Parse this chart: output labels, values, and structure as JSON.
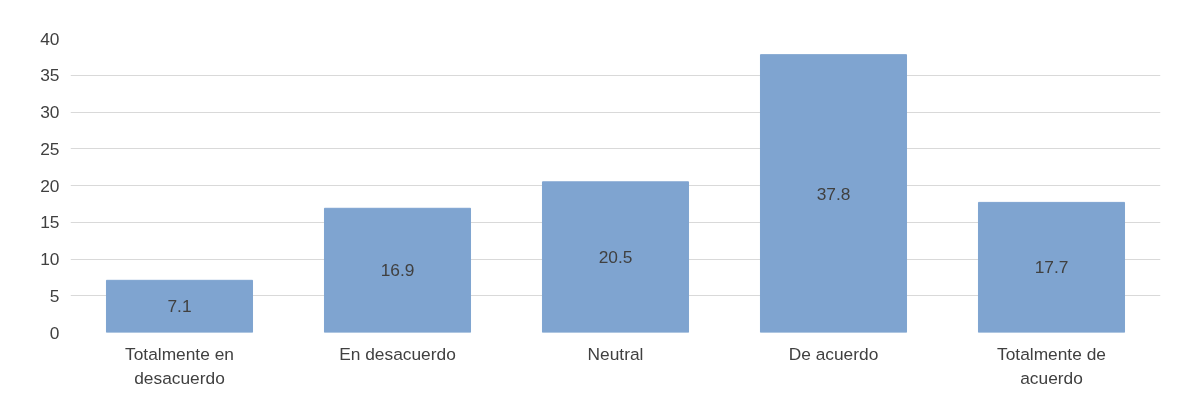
{
  "chart_data": {
    "type": "bar",
    "categories": [
      "Totalmente en desacuerdo",
      "En desacuerdo",
      "Neutral",
      "De acuerdo",
      "Totalmente de acuerdo"
    ],
    "values": [
      7.1,
      16.9,
      20.5,
      37.8,
      17.7
    ],
    "color": "#7fa4d0",
    "ylim": [
      0,
      40
    ],
    "yticks": [
      0,
      5,
      10,
      15,
      20,
      25,
      30,
      35,
      40
    ],
    "grid": "y",
    "data_labels": true
  }
}
